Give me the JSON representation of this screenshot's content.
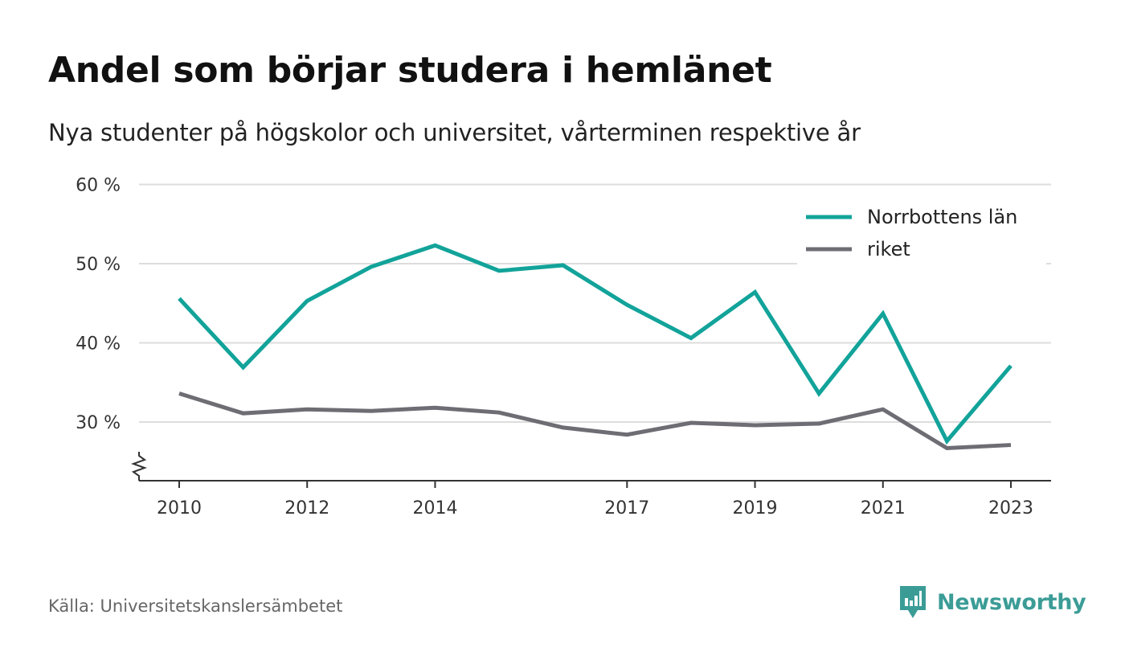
{
  "header": {
    "title": "Andel som börjar studera i hemlänet",
    "subtitle": "Nya studenter på högskolor och universitet, vårterminen respektive år"
  },
  "footer": {
    "source": "Källa: Universitetskanslersämbetet",
    "brand": "Newsworthy"
  },
  "colors": {
    "series_1": "#12a39a",
    "series_2": "#6e6d74",
    "grid": "#dddddd",
    "axis": "#333333",
    "brand": "#3b9c96"
  },
  "chart_data": {
    "type": "line",
    "title": "Andel som börjar studera i hemlänet",
    "subtitle": "Nya studenter på högskolor och universitet, vårterminen respektive år",
    "x": [
      2010,
      2011,
      2012,
      2013,
      2014,
      2015,
      2016,
      2017,
      2018,
      2019,
      2020,
      2021,
      2022,
      2023
    ],
    "x_ticks": [
      2010,
      2012,
      2014,
      2017,
      2019,
      2021,
      2023
    ],
    "y_ticks": [
      30,
      40,
      50,
      60
    ],
    "y_tick_suffix": " %",
    "ylim": [
      22.5,
      60
    ],
    "y_axis_break": true,
    "grid": true,
    "legend_position": "top-right",
    "series": [
      {
        "name": "Norrbottens län",
        "values": [
          45.6,
          36.9,
          45.3,
          49.6,
          52.3,
          49.1,
          49.8,
          44.8,
          40.6,
          46.4,
          33.6,
          43.7,
          27.6,
          37.1
        ]
      },
      {
        "name": "riket",
        "values": [
          33.6,
          31.1,
          31.6,
          31.4,
          31.8,
          31.2,
          29.3,
          28.4,
          29.9,
          29.6,
          29.8,
          31.6,
          26.7,
          27.1
        ]
      }
    ]
  }
}
